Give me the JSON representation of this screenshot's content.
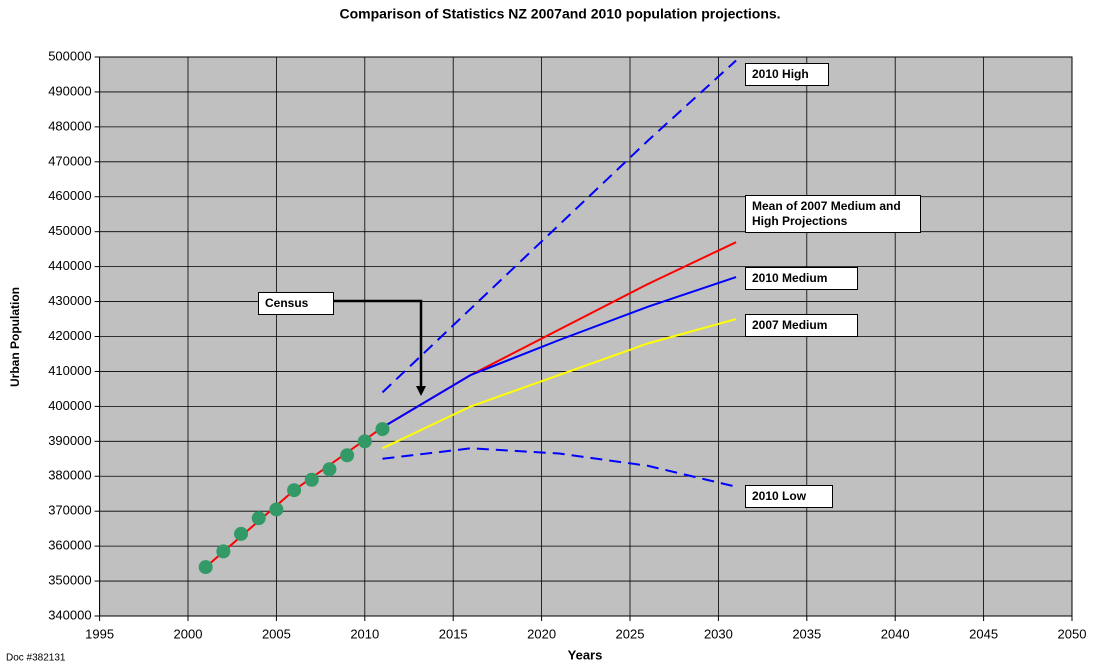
{
  "chart_data": {
    "type": "line",
    "title": "Comparison of Statistics NZ 2007and 2010 population projections.",
    "xlabel": "Years",
    "ylabel": "Urban Population",
    "footnote": "Doc #382131",
    "xlim": [
      1995,
      2050
    ],
    "xticks": [
      1995,
      2000,
      2005,
      2010,
      2015,
      2020,
      2025,
      2030,
      2035,
      2040,
      2045,
      2050
    ],
    "ylim": [
      340000,
      500000
    ],
    "yticks": [
      340000,
      350000,
      360000,
      370000,
      380000,
      390000,
      400000,
      410000,
      420000,
      430000,
      440000,
      450000,
      460000,
      470000,
      480000,
      490000,
      500000
    ],
    "grid": true,
    "background": "#c0c0c0",
    "series": [
      {
        "name": "2010 High",
        "color": "#0000ff",
        "style": "dashed",
        "x": [
          2011,
          2016,
          2021,
          2026,
          2031
        ],
        "values": [
          404000,
          428000,
          452000,
          476000,
          499000
        ]
      },
      {
        "name": "Mean of 2007 Medium and High Projections",
        "color": "#ff0000",
        "style": "solid",
        "x": [
          2001,
          2006,
          2011,
          2016,
          2021,
          2026,
          2031
        ],
        "values": [
          354000,
          376000,
          394000,
          409000,
          422000,
          435000,
          447000
        ]
      },
      {
        "name": "2010 Medium",
        "color": "#0000ff",
        "style": "solid",
        "x": [
          2011,
          2016,
          2021,
          2026,
          2031
        ],
        "values": [
          394000,
          409000,
          419000,
          428500,
          437000
        ]
      },
      {
        "name": "2007 Medium",
        "color": "#ffff00",
        "style": "solid",
        "x": [
          2011,
          2016,
          2021,
          2026,
          2031
        ],
        "values": [
          388000,
          400000,
          409000,
          418000,
          425000
        ]
      },
      {
        "name": "2010 Low",
        "color": "#0000ff",
        "style": "dashed",
        "x": [
          2011,
          2016,
          2021,
          2026,
          2031
        ],
        "values": [
          385000,
          388000,
          386500,
          383000,
          377000
        ]
      },
      {
        "name": "Census",
        "color": "#339966",
        "style": "markers",
        "x": [
          2001,
          2002,
          2003,
          2004,
          2005,
          2006,
          2007,
          2008,
          2009,
          2010,
          2011
        ],
        "values": [
          354000,
          358500,
          363500,
          368000,
          370500,
          376000,
          379000,
          382000,
          386000,
          390000,
          393500
        ]
      }
    ]
  }
}
